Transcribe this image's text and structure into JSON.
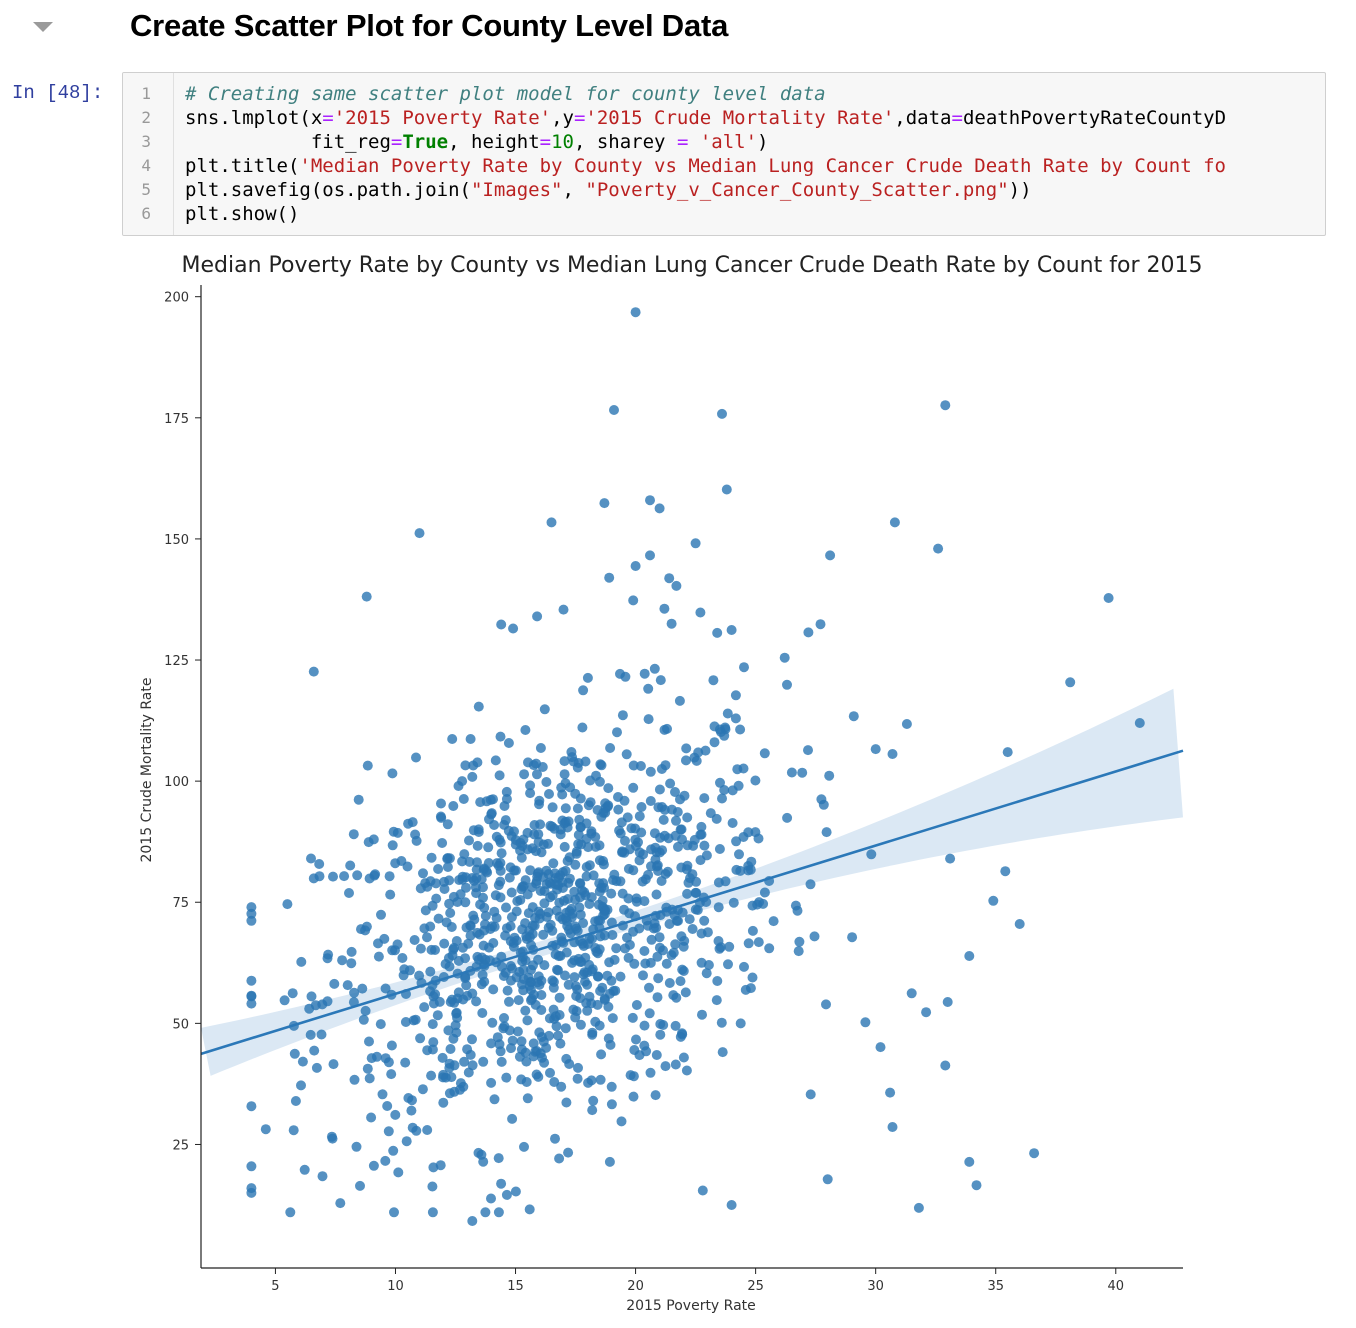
{
  "heading": "Create Scatter Plot for County Level Data",
  "prompt": "In [48]:",
  "code": {
    "line_numbers": [
      "1",
      "2",
      "3",
      "4",
      "5",
      "6"
    ],
    "line1": "# Creating same scatter plot model for county level data",
    "line2": {
      "p1": "sns.lmplot(x",
      "op1": "=",
      "s1": "'2015 Poverty Rate'",
      "p2": ",y",
      "op2": "=",
      "s2": "'2015 Crude Mortality Rate'",
      "p3": ",data",
      "op3": "=",
      "p4": "deathPovertyRateCountyD"
    },
    "line3": {
      "indent": "           fit_reg",
      "op1": "=",
      "kw1": "True",
      "p1": ", height",
      "op2": "=",
      "n1": "10",
      "p2": ", sharey ",
      "op3": "=",
      "p3": " ",
      "s1": "'all'",
      "p4": ")"
    },
    "line4": {
      "p1": "plt.title(",
      "s1": "'Median Poverty Rate by County vs Median Lung Cancer Crude Death Rate by Count fo"
    },
    "line5": {
      "p1": "plt.savefig(os.path.join(",
      "s1": "\"Images\"",
      "p2": ", ",
      "s2": "\"Poverty_v_Cancer_County_Scatter.png\"",
      "p3": "))"
    },
    "line6": "plt.show()"
  },
  "colors": {
    "point": "#2a75b3",
    "line": "#2b78b8",
    "band": "#cfe0f0",
    "axis": "#222222"
  },
  "chart_data": {
    "type": "scatter",
    "title": "Median Poverty Rate by County vs Median Lung Cancer Crude Death Rate by Count for 2015",
    "xlabel": "2015 Poverty Rate",
    "ylabel": "2015 Crude Mortality Rate",
    "xlim": [
      1.9,
      42.8
    ],
    "ylim": [
      -0.5,
      202
    ],
    "xticks": [
      5,
      10,
      15,
      20,
      25,
      30,
      35,
      40
    ],
    "yticks": [
      25,
      50,
      75,
      100,
      125,
      150,
      175,
      200
    ],
    "grid": false,
    "regression": {
      "intercept": 40.8,
      "slope": 1.53,
      "x_range": [
        1.9,
        42.8
      ]
    },
    "points": [
      [
        20.0,
        196.8
      ],
      [
        19.1,
        176.6
      ],
      [
        23.6,
        175.8
      ],
      [
        32.9,
        177.6
      ],
      [
        23.8,
        160.2
      ],
      [
        20.6,
        158.0
      ],
      [
        18.7,
        157.4
      ],
      [
        21.0,
        156.3
      ],
      [
        16.5,
        153.4
      ],
      [
        30.8,
        153.4
      ],
      [
        11.0,
        151.2
      ],
      [
        22.5,
        149.1
      ],
      [
        32.6,
        148.0
      ],
      [
        28.1,
        146.6
      ],
      [
        20.6,
        146.6
      ],
      [
        20.0,
        144.4
      ],
      [
        18.9,
        142.0
      ],
      [
        21.4,
        141.9
      ],
      [
        21.7,
        140.3
      ],
      [
        8.8,
        138.1
      ],
      [
        39.7,
        137.8
      ],
      [
        19.9,
        137.3
      ],
      [
        17.0,
        135.4
      ],
      [
        21.2,
        135.6
      ],
      [
        22.7,
        134.8
      ],
      [
        15.9,
        134.0
      ],
      [
        21.5,
        132.5
      ],
      [
        27.7,
        132.4
      ],
      [
        14.9,
        131.5
      ],
      [
        24.0,
        131.2
      ],
      [
        23.4,
        130.6
      ],
      [
        27.2,
        130.7
      ],
      [
        6.6,
        122.6
      ],
      [
        38.1,
        120.4
      ],
      [
        41.0,
        112.0
      ],
      [
        35.5,
        106.0
      ],
      [
        30.7,
        105.6
      ],
      [
        31.3,
        111.8
      ],
      [
        33.1,
        84.0
      ],
      [
        35.4,
        81.4
      ],
      [
        34.9,
        75.3
      ],
      [
        36.0,
        70.5
      ],
      [
        33.9,
        63.9
      ],
      [
        31.5,
        56.2
      ],
      [
        32.1,
        52.3
      ],
      [
        33.0,
        54.4
      ],
      [
        32.9,
        41.3
      ],
      [
        30.2,
        45.1
      ],
      [
        30.6,
        35.7
      ],
      [
        30.7,
        28.6
      ],
      [
        33.9,
        21.4
      ],
      [
        34.2,
        16.6
      ],
      [
        36.6,
        23.2
      ],
      [
        31.8,
        11.9
      ],
      [
        28.0,
        17.8
      ],
      [
        24.0,
        12.5
      ],
      [
        13.2,
        9.2
      ],
      [
        7.7,
        12.9
      ],
      [
        4.0,
        20.5
      ],
      [
        4.0,
        15.0
      ],
      [
        14.4,
        16.9
      ],
      [
        22.8,
        15.5
      ]
    ],
    "dense_cluster": {
      "center_x": 16.5,
      "center_y": 63,
      "approx_count": 1100
    }
  }
}
